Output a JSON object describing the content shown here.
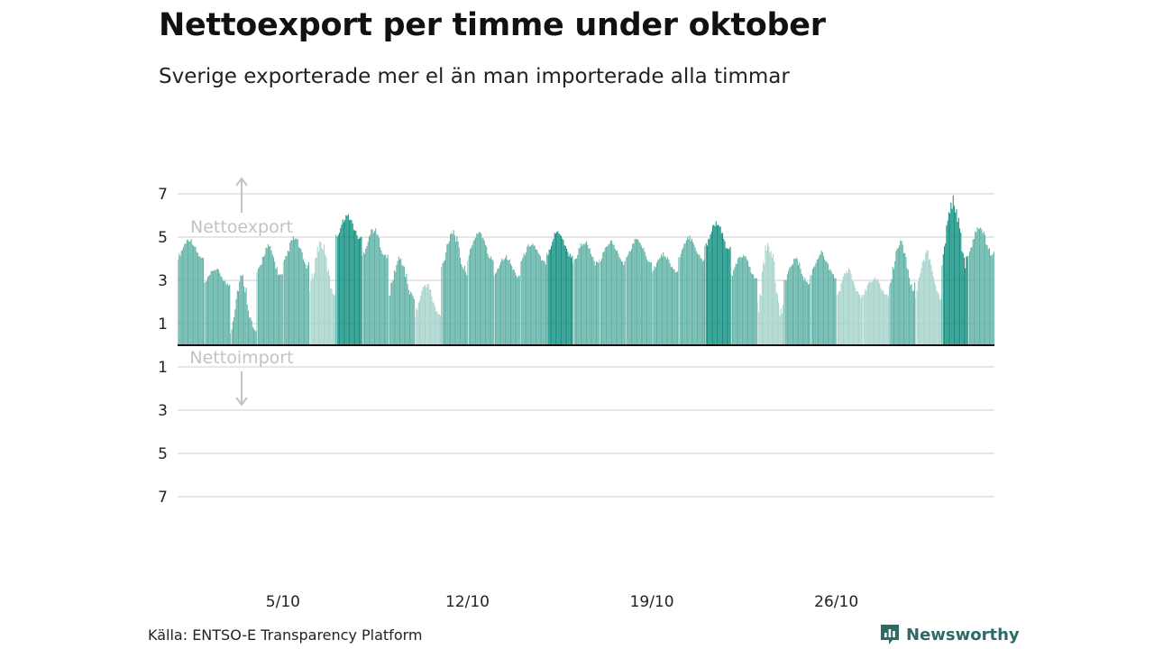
{
  "title": "Nettoexport per timme under oktober",
  "subtitle": "Sverige exporterade mer el än man importerade alla timmar",
  "source": "Källa: ENTSO-E Transparency Platform",
  "brand": {
    "name": "Newsworthy",
    "icon": "newsworthy-logo-icon",
    "color": "#2e6b65"
  },
  "annotations": {
    "up": "Nettoexport",
    "down": "Nettoimport",
    "arrow_color": "#c2c2cc"
  },
  "colors": {
    "base": "#62b3a7",
    "highlight": "#169283",
    "light": "#a8d4cd",
    "grid": "#dddddd",
    "zero_line": "#111111"
  },
  "chart_data": {
    "type": "bar",
    "title": "Nettoexport per timme under oktober",
    "subtitle": "Sverige exporterade mer el än man importerade alla timmar",
    "xlabel": "",
    "ylabel": "",
    "x_range": [
      "2023-10-01",
      "2023-10-31"
    ],
    "ylim": [
      -7,
      7.5
    ],
    "y_ticks": [
      {
        "value": 7,
        "label": "7"
      },
      {
        "value": 5,
        "label": "5"
      },
      {
        "value": 3,
        "label": "3"
      },
      {
        "value": 1,
        "label": "1"
      },
      {
        "value": -1,
        "label": "1"
      },
      {
        "value": -3,
        "label": "3"
      },
      {
        "value": -5,
        "label": "5"
      },
      {
        "value": -7,
        "label": "7"
      }
    ],
    "x_ticks": [
      {
        "date": "2023-10-05",
        "label": "5/10"
      },
      {
        "date": "2023-10-12",
        "label": "12/10"
      },
      {
        "date": "2023-10-19",
        "label": "19/10"
      },
      {
        "date": "2023-10-26",
        "label": "26/10"
      }
    ],
    "grid": true,
    "resolution": "hourly",
    "series": [
      {
        "values_by_day": [
          {
            "date": "2023-10-01",
            "mean": 4.3,
            "min": 3.9,
            "max": 5.0,
            "tone": "base"
          },
          {
            "date": "2023-10-02",
            "mean": 3.2,
            "min": 2.7,
            "max": 3.6,
            "tone": "base"
          },
          {
            "date": "2023-10-03",
            "mean": 2.2,
            "min": 0.3,
            "max": 3.4,
            "tone": "base"
          },
          {
            "date": "2023-10-04",
            "mean": 3.6,
            "min": 3.0,
            "max": 4.7,
            "tone": "base"
          },
          {
            "date": "2023-10-05",
            "mean": 4.3,
            "min": 3.5,
            "max": 5.1,
            "tone": "base"
          },
          {
            "date": "2023-10-06",
            "mean": 3.6,
            "min": 2.2,
            "max": 5.0,
            "tone": "light"
          },
          {
            "date": "2023-10-07",
            "mean": 5.5,
            "min": 4.8,
            "max": 6.1,
            "tone": "highlight"
          },
          {
            "date": "2023-10-08",
            "mean": 4.8,
            "min": 3.9,
            "max": 5.5,
            "tone": "base"
          },
          {
            "date": "2023-10-09",
            "mean": 3.4,
            "min": 2.0,
            "max": 4.2,
            "tone": "base"
          },
          {
            "date": "2023-10-10",
            "mean": 2.2,
            "min": 1.2,
            "max": 3.0,
            "tone": "light"
          },
          {
            "date": "2023-10-11",
            "mean": 4.3,
            "min": 3.2,
            "max": 5.5,
            "tone": "base"
          },
          {
            "date": "2023-10-12",
            "mean": 4.7,
            "min": 3.8,
            "max": 5.4,
            "tone": "base"
          },
          {
            "date": "2023-10-13",
            "mean": 3.6,
            "min": 3.1,
            "max": 4.2,
            "tone": "base"
          },
          {
            "date": "2023-10-14",
            "mean": 4.3,
            "min": 3.7,
            "max": 4.8,
            "tone": "base"
          },
          {
            "date": "2023-10-15",
            "mean": 4.8,
            "min": 4.0,
            "max": 5.4,
            "tone": "highlight"
          },
          {
            "date": "2023-10-16",
            "mean": 4.0,
            "min": 3.6,
            "max": 4.9,
            "tone": "base"
          },
          {
            "date": "2023-10-17",
            "mean": 4.2,
            "min": 3.7,
            "max": 4.9,
            "tone": "base"
          },
          {
            "date": "2023-10-18",
            "mean": 4.4,
            "min": 3.8,
            "max": 5.0,
            "tone": "base"
          },
          {
            "date": "2023-10-19",
            "mean": 3.7,
            "min": 3.3,
            "max": 4.3,
            "tone": "base"
          },
          {
            "date": "2023-10-20",
            "mean": 4.4,
            "min": 3.8,
            "max": 5.1,
            "tone": "base"
          },
          {
            "date": "2023-10-21",
            "mean": 5.0,
            "min": 4.3,
            "max": 5.8,
            "tone": "highlight"
          },
          {
            "date": "2023-10-22",
            "mean": 3.8,
            "min": 3.0,
            "max": 4.3,
            "tone": "base"
          },
          {
            "date": "2023-10-23",
            "mean": 3.9,
            "min": 1.0,
            "max": 5.1,
            "tone": "light"
          },
          {
            "date": "2023-10-24",
            "mean": 3.5,
            "min": 2.7,
            "max": 4.1,
            "tone": "base"
          },
          {
            "date": "2023-10-25",
            "mean": 3.6,
            "min": 3.0,
            "max": 4.4,
            "tone": "base"
          },
          {
            "date": "2023-10-26",
            "mean": 3.1,
            "min": 2.0,
            "max": 3.6,
            "tone": "light"
          },
          {
            "date": "2023-10-27",
            "mean": 2.6,
            "min": 2.2,
            "max": 3.2,
            "tone": "light"
          },
          {
            "date": "2023-10-28",
            "mean": 3.8,
            "min": 2.4,
            "max": 4.9,
            "tone": "base"
          },
          {
            "date": "2023-10-29",
            "mean": 3.0,
            "min": 2.0,
            "max": 4.5,
            "tone": "light"
          },
          {
            "date": "2023-10-30",
            "mean": 5.6,
            "min": 3.5,
            "max": 7.0,
            "tone": "highlight"
          },
          {
            "date": "2023-10-31",
            "mean": 5.0,
            "min": 4.0,
            "max": 5.6,
            "tone": "base"
          }
        ]
      }
    ]
  }
}
